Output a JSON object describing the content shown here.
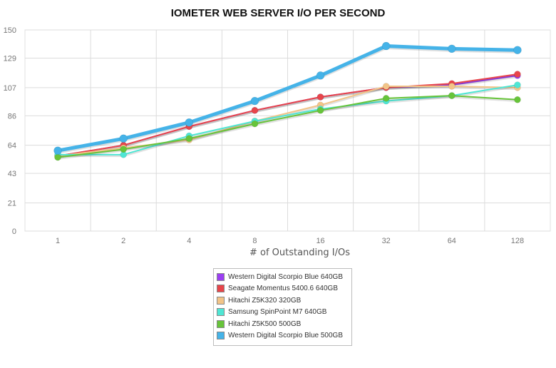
{
  "chart_data": {
    "type": "line",
    "title": "IOMETER WEB SERVER I/O PER SECOND",
    "xlabel": "# of Outstanding I/Os",
    "ylabel": "",
    "categories": [
      "1",
      "2",
      "4",
      "8",
      "16",
      "32",
      "64",
      "128"
    ],
    "yticks": [
      0,
      21,
      43,
      64,
      86,
      107,
      129,
      150
    ],
    "ylim": [
      0,
      150
    ],
    "grid": true,
    "legend_position": "bottom",
    "series": [
      {
        "name": "Western Digital Scorpio Blue 640GB",
        "color": "#9b3ff2",
        "values": [
          56,
          64,
          78,
          90,
          100,
          107,
          109,
          116
        ]
      },
      {
        "name": "Seagate Momentus 5400.6 640GB",
        "color": "#e8454a",
        "values": [
          56,
          64,
          78,
          90,
          100,
          107,
          110,
          117
        ]
      },
      {
        "name": "Hitachi Z5K320 320GB",
        "color": "#f2c488",
        "values": [
          56,
          62,
          68,
          82,
          94,
          108,
          108,
          107
        ]
      },
      {
        "name": "Samsung SpinPoint M7 640GB",
        "color": "#4fe6d4",
        "values": [
          57,
          57,
          71,
          82,
          91,
          97,
          101,
          109
        ]
      },
      {
        "name": "Hitachi Z5K500 500GB",
        "color": "#67c43a",
        "values": [
          55,
          61,
          69,
          80,
          90,
          99,
          101,
          98
        ]
      },
      {
        "name": "Western Digital Scorpio Blue 500GB",
        "color": "#45b3e8",
        "values": [
          60,
          69,
          81,
          97,
          116,
          138,
          136,
          135
        ]
      }
    ]
  }
}
